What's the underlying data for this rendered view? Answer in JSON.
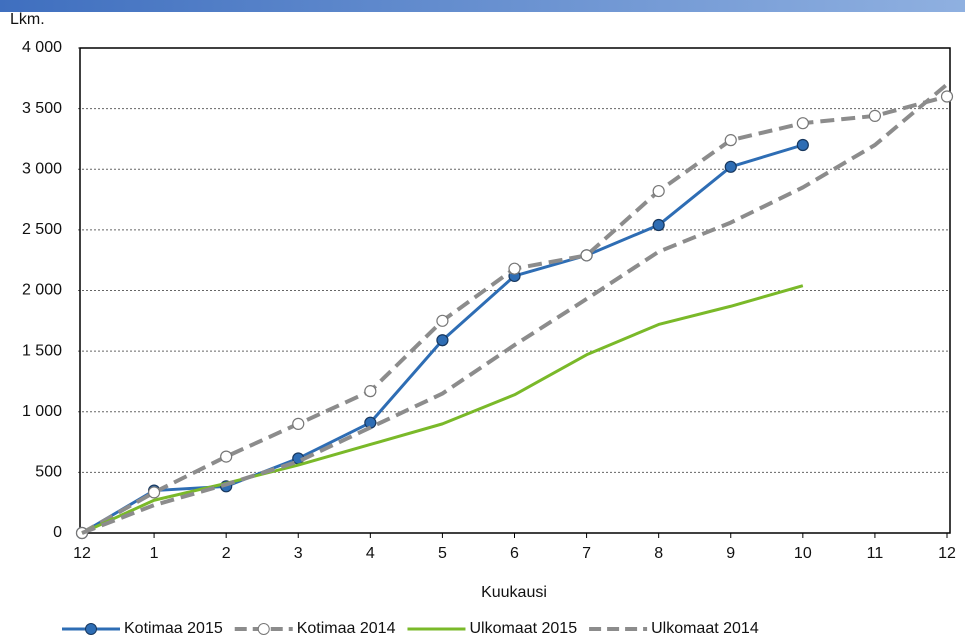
{
  "chart_data": {
    "type": "line",
    "title": "Lkm.",
    "x_label": "Kuukausi",
    "categories": [
      "12",
      "1",
      "2",
      "3",
      "4",
      "5",
      "6",
      "7",
      "8",
      "9",
      "10",
      "11",
      "12"
    ],
    "ylim": [
      0,
      4000
    ],
    "yticks": [
      0,
      500,
      {
        "value": 1000,
        "label": "1 000"
      },
      {
        "value": 1500,
        "label": "1 500"
      },
      {
        "value": 2000,
        "label": "2 000"
      },
      {
        "value": 2500,
        "label": "2 500"
      },
      {
        "value": 3000,
        "label": "3 000"
      },
      {
        "value": 3500,
        "label": "3 500"
      },
      {
        "value": 4000,
        "label": "4 000"
      }
    ],
    "grid": true,
    "legend": "bottom",
    "series": [
      {
        "name": "Kotimaa 2015",
        "color": "#2e6db4",
        "dashed": false,
        "marker": "filled",
        "values": [
          0,
          350,
          385,
          615,
          910,
          1590,
          2120,
          2290,
          2540,
          3020,
          3200,
          null,
          null
        ]
      },
      {
        "name": "Kotimaa 2014",
        "color": "#8c8c8c",
        "dashed": true,
        "marker": "open",
        "values": [
          0,
          335,
          630,
          900,
          1170,
          1750,
          2180,
          2290,
          2820,
          3240,
          3380,
          3440,
          3600
        ]
      },
      {
        "name": "Ulkomaat 2015",
        "color": "#7ab929",
        "dashed": false,
        "marker": "none",
        "values": [
          0,
          270,
          410,
          560,
          730,
          900,
          1140,
          1470,
          1720,
          1870,
          2040,
          null,
          null
        ]
      },
      {
        "name": "Ulkomaat 2014",
        "color": "#8c8c8c",
        "dashed": true,
        "marker": "none",
        "values": [
          0,
          230,
          400,
          590,
          870,
          1150,
          1550,
          1930,
          2320,
          2560,
          2850,
          3200,
          3700
        ]
      }
    ]
  }
}
